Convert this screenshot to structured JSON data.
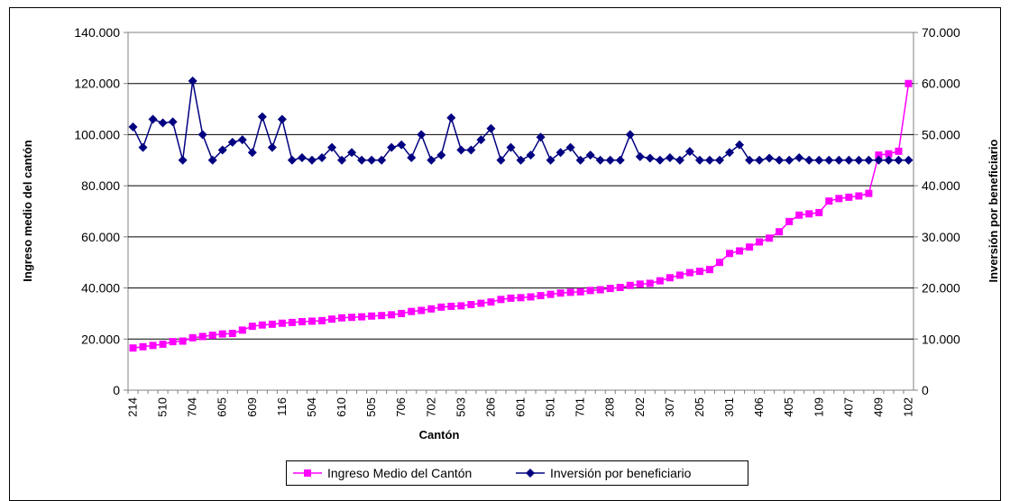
{
  "chart_data": {
    "type": "line",
    "x_label": "Cantón",
    "y_label": "Ingreso medio del cantón",
    "y2_label": "Inversión por beneficiario",
    "categories": [
      "214",
      null,
      null,
      "510",
      null,
      null,
      "704",
      null,
      null,
      "605",
      null,
      null,
      "609",
      null,
      null,
      "116",
      null,
      null,
      "504",
      null,
      null,
      "610",
      null,
      null,
      "505",
      null,
      null,
      "706",
      null,
      null,
      "702",
      null,
      null,
      "503",
      null,
      null,
      "206",
      null,
      null,
      "601",
      null,
      null,
      "501",
      null,
      null,
      "701",
      null,
      null,
      "208",
      null,
      null,
      "202",
      null,
      null,
      "307",
      null,
      null,
      "205",
      null,
      null,
      "301",
      null,
      null,
      "406",
      null,
      null,
      "405",
      null,
      null,
      "109",
      null,
      null,
      "407",
      null,
      null,
      "409",
      null,
      null,
      "102"
    ],
    "series": [
      {
        "name": "Ingreso Medio del Cantón",
        "color": "#ff00ff",
        "marker": "square",
        "axis": "y",
        "values": [
          16500,
          17000,
          17500,
          18000,
          19000,
          19200,
          20500,
          21000,
          21500,
          22000,
          22200,
          23500,
          25000,
          25500,
          25800,
          26200,
          26500,
          26800,
          27000,
          27200,
          27800,
          28300,
          28500,
          28700,
          29000,
          29200,
          29500,
          30000,
          30800,
          31200,
          31800,
          32500,
          32800,
          33000,
          33500,
          34000,
          34500,
          35500,
          36000,
          36200,
          36500,
          37000,
          37500,
          38000,
          38300,
          38500,
          39000,
          39300,
          39800,
          40200,
          41000,
          41500,
          41800,
          42800,
          44000,
          45000,
          46000,
          46500,
          47200,
          50000,
          53500,
          54500,
          56000,
          58000,
          59500,
          62000,
          66000,
          68500,
          69000,
          69500,
          74000,
          75000,
          75500,
          76000,
          77000,
          92000,
          92500,
          93500,
          120000
        ]
      },
      {
        "name": "Inversión por beneficiario",
        "color": "#000080",
        "marker": "diamond",
        "axis": "y2",
        "values": [
          51500,
          47500,
          53000,
          52300,
          52500,
          45000,
          60500,
          50000,
          45000,
          47000,
          48500,
          49000,
          46500,
          53500,
          47500,
          53000,
          45000,
          45500,
          45000,
          45500,
          47500,
          45000,
          46500,
          45000,
          45000,
          45000,
          47500,
          48000,
          45500,
          50000,
          45000,
          46000,
          53300,
          47000,
          47000,
          49000,
          51200,
          45000,
          47500,
          45000,
          46000,
          49500,
          45000,
          46500,
          47500,
          45000,
          46000,
          45000,
          45000,
          45000,
          50000,
          45700,
          45400,
          45000,
          45500,
          45000,
          46700,
          45000,
          45000,
          45000,
          46500,
          48000,
          45000,
          45000,
          45400,
          45000,
          45000,
          45500,
          45000,
          45000,
          45000,
          45000,
          45000,
          45000,
          45000,
          45000,
          45000,
          45000,
          45000
        ]
      }
    ],
    "ylim": [
      0,
      140000
    ],
    "yticks": [
      0,
      {
        "value": 20000,
        "label": "20.000"
      },
      {
        "value": 40000,
        "label": "40.000"
      },
      {
        "value": 60000,
        "label": "60.000"
      },
      {
        "value": 80000,
        "label": "80.000"
      },
      {
        "value": 100000,
        "label": "100.000"
      },
      {
        "value": 120000,
        "label": "120.000"
      },
      {
        "value": 140000,
        "label": "140.000"
      }
    ],
    "y2lim": [
      0,
      70000
    ],
    "y2ticks": [
      0,
      {
        "value": 10000,
        "label": "10.000"
      },
      {
        "value": 20000,
        "label": "20.000"
      },
      {
        "value": 30000,
        "label": "30.000"
      },
      {
        "value": 40000,
        "label": "40.000"
      },
      {
        "value": 50000,
        "label": "50.000"
      },
      {
        "value": 60000,
        "label": "60.000"
      },
      {
        "value": 70000,
        "label": "70.000"
      }
    ],
    "grid": true,
    "legend": "bottom"
  }
}
